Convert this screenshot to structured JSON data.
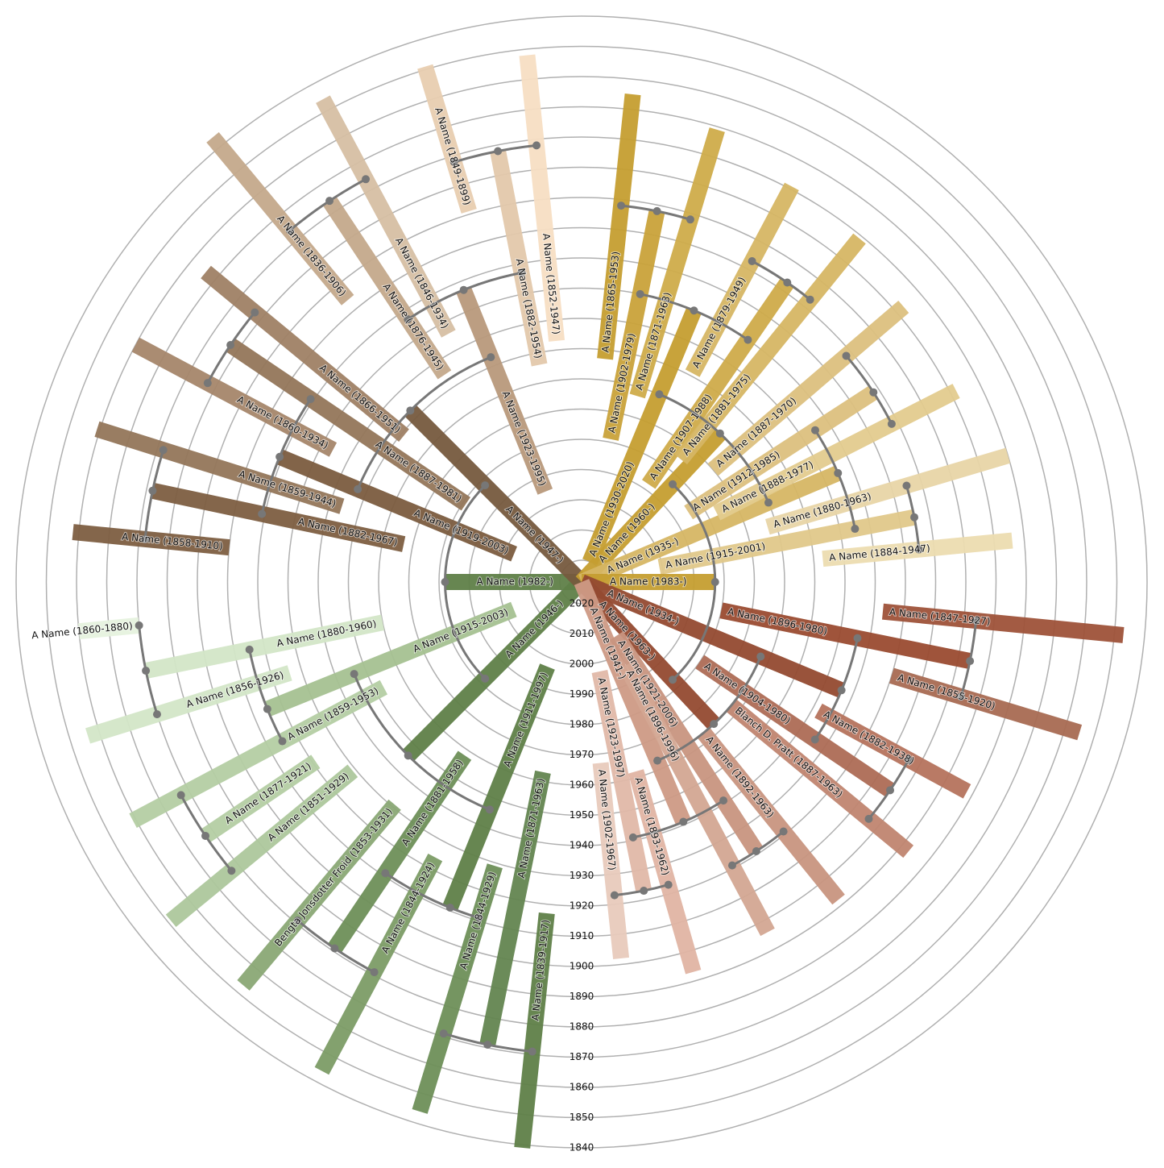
{
  "chart_data": {
    "type": "radial-family-tree",
    "rlim": [
      2020,
      1840
    ],
    "rticks": [
      2020,
      2010,
      2000,
      1990,
      1980,
      1970,
      1960,
      1950,
      1940,
      1930,
      1920,
      1910,
      1900,
      1890,
      1880,
      1870,
      1860,
      1850,
      1840
    ],
    "people": [
      {
        "label": "A Name (1982-)",
        "birth": 1982,
        "death": null,
        "color": "#5f7f48"
      },
      {
        "label": "A Name (1946-)",
        "birth": 1946,
        "death": null,
        "color": "#5f7f48"
      },
      {
        "label": "A Name (1915-2003)",
        "birth": 1915,
        "death": 2003,
        "color": "#a5c191"
      },
      {
        "label": "A Name (1880-1960)",
        "birth": 1880,
        "death": 1960,
        "color": "#d3e6c7"
      },
      {
        "label": "A Name (1860-1880)",
        "birth": 1860,
        "death": 1880,
        "color": "#e6f2de"
      },
      {
        "label": "A Name (1856-1926)",
        "birth": 1856,
        "death": 1926,
        "color": "#d3e6c7"
      },
      {
        "label": "A Name (1859-1953)",
        "birth": 1859,
        "death": 1953,
        "color": "#b4cda3"
      },
      {
        "label": "A Name (1877-1921)",
        "birth": 1877,
        "death": 1921,
        "color": "#b4cda3"
      },
      {
        "label": "A Name (1851-1929)",
        "birth": 1851,
        "death": 1929,
        "color": "#adc79c"
      },
      {
        "label": "Bengta Jonsdotter Froid (1853-1931)",
        "birth": 1853,
        "death": 1931,
        "color": "#8aa875"
      },
      {
        "label": "A Name (1881-1958)",
        "birth": 1881,
        "death": 1958,
        "color": "#6e8f59"
      },
      {
        "label": "A Name (1844-1924)",
        "birth": 1844,
        "death": 1924,
        "color": "#7c9c66"
      },
      {
        "label": "A Name (1911-1997)",
        "birth": 1911,
        "death": 1997,
        "color": "#5f7f48"
      },
      {
        "label": "A Name (1844-1929)",
        "birth": 1844,
        "death": 1929,
        "color": "#6e8f59"
      },
      {
        "label": "A Name (1871-1963)",
        "birth": 1871,
        "death": 1963,
        "color": "#638550"
      },
      {
        "label": "A Name (1839-1917)",
        "birth": 1839,
        "death": 1917,
        "color": "#5f7f48"
      },
      {
        "label": "A Name (1947-)",
        "birth": 1947,
        "death": null,
        "color": "#765a3e"
      },
      {
        "label": "A Name (1919-2003)",
        "birth": 1919,
        "death": 2003,
        "color": "#7b5c3f"
      },
      {
        "label": "A Name (1887-1981)",
        "birth": 1887,
        "death": 1981,
        "color": "#94765a"
      },
      {
        "label": "A Name (1866-1951)",
        "birth": 1866,
        "death": 1951,
        "color": "#9f8165"
      },
      {
        "label": "A Name (1860-1934)",
        "birth": 1860,
        "death": 1934,
        "color": "#a5866a"
      },
      {
        "label": "A Name (1882-1967)",
        "birth": 1882,
        "death": 1967,
        "color": "#7d5e41"
      },
      {
        "label": "A Name (1859-1944)",
        "birth": 1859,
        "death": 1944,
        "color": "#94765a"
      },
      {
        "label": "A Name (1858-1910)",
        "birth": 1858,
        "death": 1910,
        "color": "#7d5e41"
      },
      {
        "label": "A Name (1923-1995)",
        "birth": 1923,
        "death": 1995,
        "color": "#b8997b"
      },
      {
        "label": "A Name (1876-1945)",
        "birth": 1876,
        "death": 1945,
        "color": "#c4a98b"
      },
      {
        "label": "A Name (1846-1934)",
        "birth": 1846,
        "death": 1934,
        "color": "#d6bfa3"
      },
      {
        "label": "A Name (1836-1906)",
        "birth": 1836,
        "death": 1906,
        "color": "#c4a98b"
      },
      {
        "label": "A Name (1882-1954)",
        "birth": 1882,
        "death": 1954,
        "color": "#e3c8ab"
      },
      {
        "label": "A Name (1849-1899)",
        "birth": 1849,
        "death": 1899,
        "color": "#e8cdb0"
      },
      {
        "label": "A Name (1852-1947)",
        "birth": 1852,
        "death": 1947,
        "color": "#f7dec3"
      },
      {
        "label": "A Name (1930-2020)",
        "birth": 1930,
        "death": 2020,
        "color": "#c59e30"
      },
      {
        "label": "A Name (1902-1979)",
        "birth": 1902,
        "death": 1979,
        "color": "#c9a23a"
      },
      {
        "label": "A Name (1865-1953)",
        "birth": 1865,
        "death": 1953,
        "color": "#c59e30"
      },
      {
        "label": "A Name (1871-1963)",
        "birth": 1871,
        "death": 1963,
        "color": "#cfac4a"
      },
      {
        "label": "A Name (1960-)",
        "birth": 1960,
        "death": null,
        "color": "#c59e30"
      },
      {
        "label": "A Name (1907-1988)",
        "birth": 1907,
        "death": 1988,
        "color": "#cfab4a"
      },
      {
        "label": "A Name (1879-1949)",
        "birth": 1879,
        "death": 1949,
        "color": "#d6b664"
      },
      {
        "label": "A Name (1881-1975)",
        "birth": 1881,
        "death": 1975,
        "color": "#d6b664"
      },
      {
        "label": "A Name (1935-)",
        "birth": 1935,
        "death": null,
        "color": "#d6b664"
      },
      {
        "label": "A Name (1887-1970)",
        "birth": 1887,
        "death": 1970,
        "color": "#dcc07e"
      },
      {
        "label": "A Name (1912-1985)",
        "birth": 1912,
        "death": 1985,
        "color": "#dcc07e"
      },
      {
        "label": "A Name (1888-1977)",
        "birth": 1888,
        "death": 1977,
        "color": "#e3cb8e"
      },
      {
        "label": "A Name (1880-1963)",
        "birth": 1880,
        "death": 1963,
        "color": "#e8d5a6"
      },
      {
        "label": "A Name (1884-1947)",
        "birth": 1884,
        "death": 1947,
        "color": "#ecdcb0"
      },
      {
        "label": "A Name (1915-2001)",
        "birth": 1915,
        "death": 2001,
        "color": "#e0c88a"
      },
      {
        "label": "A Name (1983-)",
        "birth": 1983,
        "death": null,
        "color": "#c59e30"
      },
      {
        "label": "A Name (1934-)",
        "birth": 1934,
        "death": null,
        "color": "#934a30"
      },
      {
        "label": "A Name (1963-)",
        "birth": 1963,
        "death": null,
        "color": "#934a30"
      },
      {
        "label": "A Name (1941-)",
        "birth": 1941,
        "death": null,
        "color": "#cd9a85"
      },
      {
        "label": "A Name (1921-2006)",
        "birth": 1921,
        "death": 2006,
        "color": "#c89580"
      },
      {
        "label": "A Name (1896-1996)",
        "birth": 1896,
        "death": 1996,
        "color": "#d3a692"
      },
      {
        "label": "A Name (1923-1997)",
        "birth": 1923,
        "death": 1997,
        "color": "#e0b8a8"
      },
      {
        "label": "A Name (1902-1967)",
        "birth": 1902,
        "death": 1967,
        "color": "#e8cabc"
      },
      {
        "label": "A Name (1893-1962)",
        "birth": 1893,
        "death": 1962,
        "color": "#e0b4a3"
      },
      {
        "label": "A Name (1892-1963)",
        "birth": 1892,
        "death": 1963,
        "color": "#c8957f"
      },
      {
        "label": "Blanch D. Pratt (1887-1963)",
        "birth": 1887,
        "death": 1963,
        "color": "#c08570"
      },
      {
        "label": "A Name (1904-1980)",
        "birth": 1904,
        "death": 1980,
        "color": "#ad6b55"
      },
      {
        "label": "A Name (1882-1938)",
        "birth": 1882,
        "death": 1938,
        "color": "#b5735d"
      },
      {
        "label": "A Name (1896-1980)",
        "birth": 1896,
        "death": 1980,
        "color": "#9a4b30"
      },
      {
        "label": "A Name (1847-1927)",
        "birth": 1847,
        "death": 1927,
        "color": "#9e5239"
      },
      {
        "label": "A Name (1855-1920)",
        "birth": 1855,
        "death": 1920,
        "color": "#a86a52"
      }
    ]
  }
}
